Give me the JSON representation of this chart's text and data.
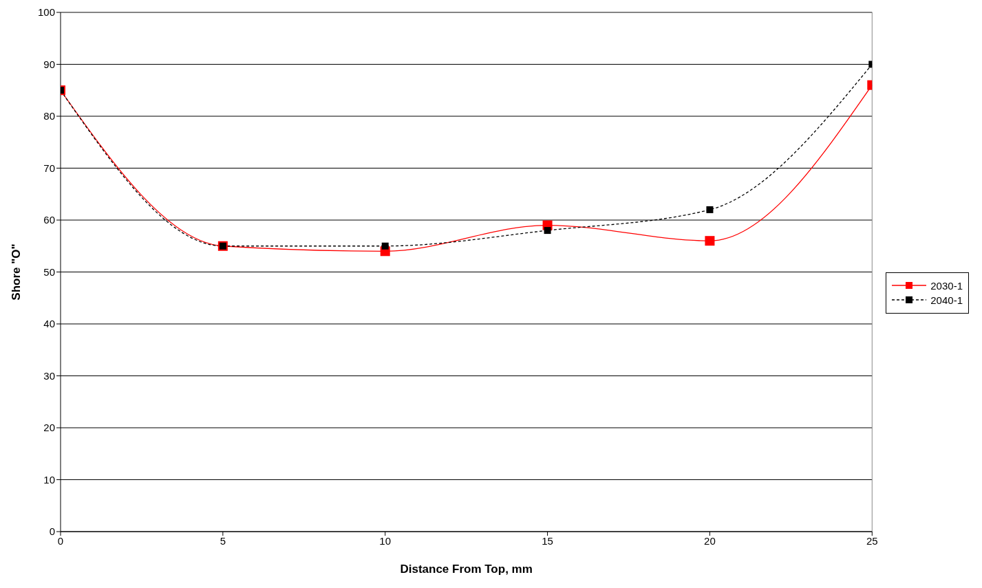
{
  "chart_data": {
    "type": "line",
    "xlabel": "Distance From Top, mm",
    "ylabel": "Shore \"O\"",
    "x": [
      0,
      5,
      10,
      15,
      20,
      25
    ],
    "series": [
      {
        "name": "2030-1",
        "color": "#ff0000",
        "values": [
          85,
          55,
          54,
          59,
          56,
          86
        ],
        "line_style": "solid"
      },
      {
        "name": "2040-1",
        "color": "#000000",
        "values": [
          85,
          55,
          55,
          58,
          62,
          90
        ],
        "line_style": "dashed"
      }
    ],
    "xlim": [
      0,
      25
    ],
    "xticks": [
      0,
      5,
      10,
      15,
      20,
      25
    ],
    "ylim": [
      0,
      100
    ],
    "yticks": [
      0,
      10,
      20,
      30,
      40,
      50,
      60,
      70,
      80,
      90,
      100
    ],
    "grid": "y",
    "legend": "right",
    "marker": "square"
  }
}
